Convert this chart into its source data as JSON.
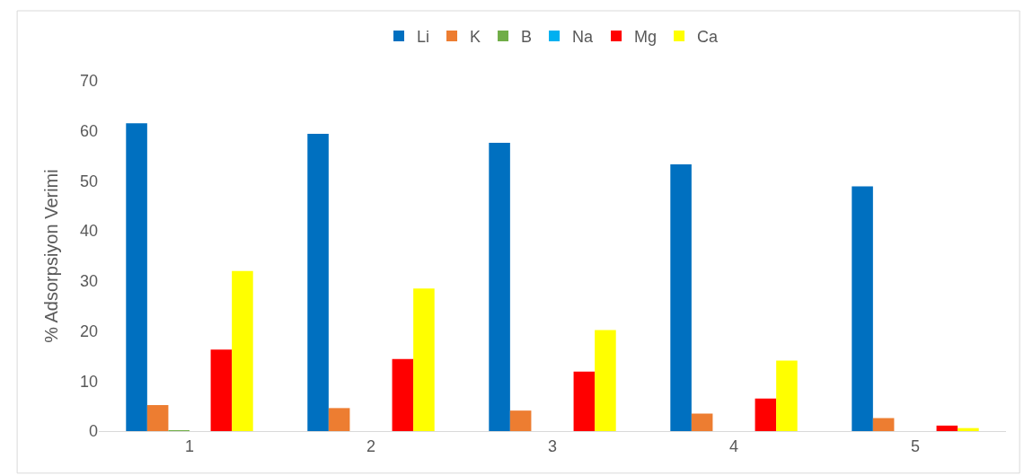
{
  "chart_data": {
    "type": "bar",
    "ylabel": "% Adsorpsiyon Verimi",
    "categories": [
      "1",
      "2",
      "3",
      "4",
      "5"
    ],
    "series": [
      {
        "name": "Li",
        "color": "#0070c0",
        "values": [
          61.5,
          59.4,
          57.6,
          53.3,
          48.9
        ]
      },
      {
        "name": "K",
        "color": "#ed7d31",
        "values": [
          5.2,
          4.6,
          4.1,
          3.5,
          2.6
        ]
      },
      {
        "name": "B",
        "color": "#70ad47",
        "values": [
          0.1,
          0,
          0,
          0,
          0
        ]
      },
      {
        "name": "Na",
        "color": "#00b0f0",
        "values": [
          0,
          0,
          0,
          0,
          0
        ]
      },
      {
        "name": "Mg",
        "color": "#ff0000",
        "values": [
          16.3,
          14.4,
          11.9,
          6.5,
          1.1
        ]
      },
      {
        "name": "Ca",
        "color": "#ffff00",
        "values": [
          32.0,
          28.5,
          20.2,
          14.1,
          0.6
        ]
      }
    ],
    "ylim": [
      0,
      70
    ],
    "yticks": [
      0,
      10,
      20,
      30,
      40,
      50,
      60,
      70
    ],
    "grid": false,
    "legend": "top"
  }
}
